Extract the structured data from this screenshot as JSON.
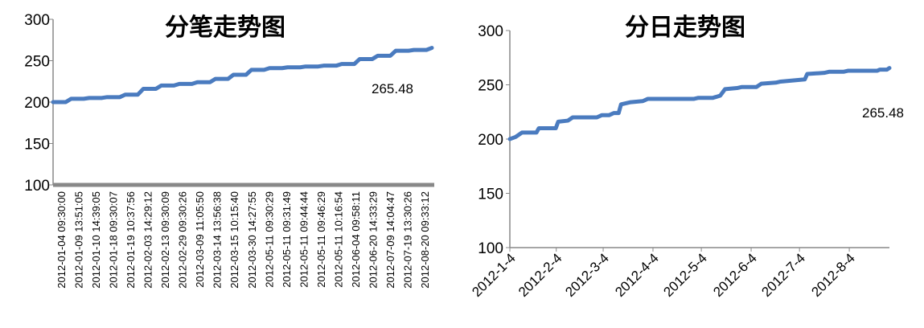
{
  "chart_data": [
    {
      "type": "line",
      "title": "分笔走势图",
      "ylim": [
        100,
        300
      ],
      "yticks": [
        100,
        150,
        200,
        250,
        300
      ],
      "color": "#4a7bbf",
      "data_label": "265.48",
      "categories": [
        "2012-01-04 09:30:00",
        "2012-01-09 13:51:05",
        "2012-01-10 14:39:05",
        "2012-01-18 09:30:07",
        "2012-01-19 10:37:56",
        "2012-02-03 14:29:12",
        "2012-02-13 09:30:09",
        "2012-02-29 09:30:26",
        "2012-03-09 11:05:50",
        "2012-03-14 13:56:38",
        "2012-03-15 10:15:40",
        "2012-03-30 14:27:55",
        "2012-05-11 09:30:29",
        "2012-05-11 09:31:49",
        "2012-05-11 09:44:44",
        "2012-05-11 09:46:29",
        "2012-05-11 10:16:54",
        "2012-06-04 09:58:11",
        "2012-06-20 14:33:29",
        "2012-07-09 14:04:47",
        "2012-07-19 13:30:26",
        "2012-08-20 09:33:12"
      ],
      "values": [
        200,
        204,
        205,
        206,
        209,
        216,
        220,
        222,
        224,
        228,
        233,
        239,
        241,
        242,
        243,
        244,
        246,
        252,
        256,
        262,
        263,
        265.48
      ]
    },
    {
      "type": "line",
      "title": "分日走势图",
      "ylim": [
        100,
        300
      ],
      "yticks": [
        100,
        150,
        200,
        250,
        300
      ],
      "color": "#4a7bbf",
      "data_label": "265.48",
      "x_labels": [
        "2012-1-4",
        "2012-2-4",
        "2012-3-4",
        "2012-4-4",
        "2012-5-4",
        "2012-6-4",
        "2012-7-4",
        "2012-8-4"
      ],
      "points": [
        [
          0,
          200
        ],
        [
          0.12,
          202
        ],
        [
          0.25,
          206
        ],
        [
          0.55,
          206
        ],
        [
          0.6,
          210
        ],
        [
          0.95,
          210
        ],
        [
          1.0,
          216
        ],
        [
          1.2,
          217
        ],
        [
          1.3,
          220
        ],
        [
          1.8,
          220
        ],
        [
          1.9,
          222
        ],
        [
          2.05,
          222
        ],
        [
          2.15,
          224
        ],
        [
          2.25,
          224
        ],
        [
          2.3,
          232
        ],
        [
          2.5,
          234
        ],
        [
          2.75,
          235
        ],
        [
          2.85,
          237
        ],
        [
          3.4,
          237
        ],
        [
          3.8,
          237
        ],
        [
          3.9,
          238
        ],
        [
          4.2,
          238
        ],
        [
          4.35,
          240
        ],
        [
          4.45,
          246
        ],
        [
          4.7,
          247
        ],
        [
          4.8,
          248
        ],
        [
          5.1,
          248
        ],
        [
          5.2,
          251
        ],
        [
          5.5,
          252
        ],
        [
          5.6,
          253
        ],
        [
          5.85,
          254
        ],
        [
          6.1,
          255
        ],
        [
          6.15,
          260
        ],
        [
          6.5,
          261
        ],
        [
          6.6,
          262
        ],
        [
          6.9,
          262
        ],
        [
          7.0,
          263
        ],
        [
          7.6,
          263
        ],
        [
          7.65,
          264
        ],
        [
          7.8,
          264
        ],
        [
          7.85,
          265.48
        ]
      ],
      "x_max": 7.85
    }
  ]
}
